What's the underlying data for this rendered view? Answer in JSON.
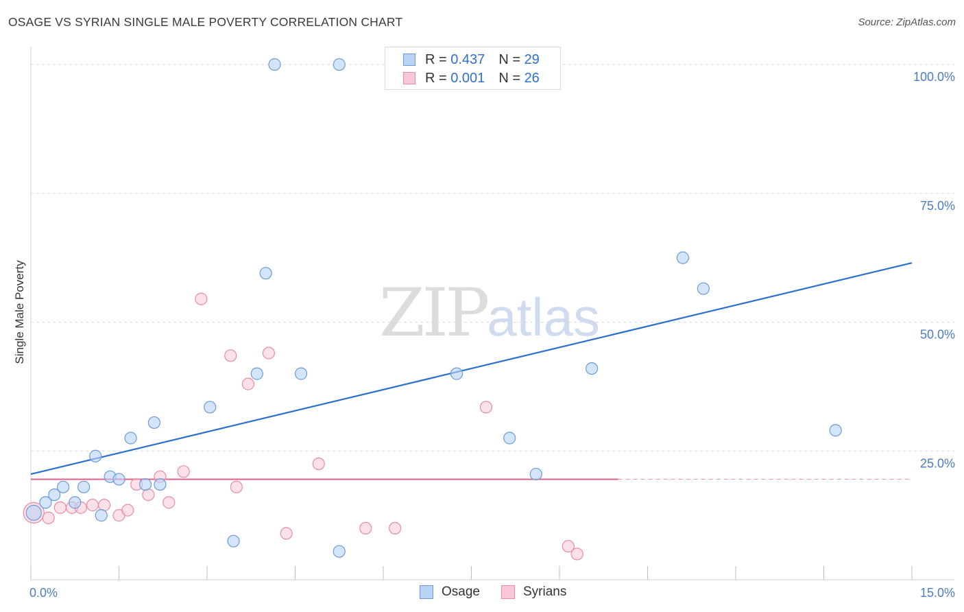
{
  "title": "OSAGE VS SYRIAN SINGLE MALE POVERTY CORRELATION CHART",
  "source": "Source: ZipAtlas.com",
  "watermark": {
    "zip": "ZIP",
    "atlas": "atlas"
  },
  "legend": {
    "rows": [
      {
        "r_label": "R = ",
        "r_value": "0.437",
        "n_label": "N = ",
        "n_value": "29"
      },
      {
        "r_label": "R = ",
        "r_value": "0.001",
        "n_label": "N = ",
        "n_value": "26"
      }
    ]
  },
  "bottom_legend": [
    "Osage",
    "Syrians"
  ],
  "colors": {
    "osage_fill": "#b9d3f5",
    "osage_stroke": "#6a9ad8",
    "osage_line": "#2a6fd0",
    "syrian_fill": "#f9c8d6",
    "syrian_stroke": "#e88aa6",
    "syrian_line": "#e06890",
    "grid": "#d9d9d9",
    "axis_text": "#4a7cc4"
  },
  "chart_data": {
    "type": "scatter",
    "title": "OSAGE VS SYRIAN SINGLE MALE POVERTY CORRELATION CHART",
    "xlabel": "",
    "ylabel": "Single Male Poverty",
    "xlim": [
      0,
      15
    ],
    "ylim": [
      0,
      102
    ],
    "x_tick_labels": [
      {
        "value": 0,
        "label": "0.0%"
      },
      {
        "value": 15,
        "label": "15.0%"
      }
    ],
    "y_tick_labels": [
      {
        "value": 25,
        "label": "25.0%"
      },
      {
        "value": 50,
        "label": "50.0%"
      },
      {
        "value": 75,
        "label": "75.0%"
      },
      {
        "value": 100,
        "label": "100.0%"
      }
    ],
    "x_minor_ticks": [
      0,
      1.5,
      3,
      4.5,
      6,
      7.5,
      9,
      10.5,
      12,
      13.5,
      15
    ],
    "series": [
      {
        "name": "Osage",
        "R": 0.437,
        "N": 29,
        "points": [
          [
            0.05,
            13.0
          ],
          [
            0.25,
            15.0
          ],
          [
            0.4,
            16.5
          ],
          [
            0.55,
            18.0
          ],
          [
            0.75,
            15.0
          ],
          [
            0.9,
            18.0
          ],
          [
            1.1,
            24.0
          ],
          [
            1.2,
            12.5
          ],
          [
            1.35,
            20.0
          ],
          [
            1.5,
            19.5
          ],
          [
            1.7,
            27.5
          ],
          [
            1.95,
            18.5
          ],
          [
            2.1,
            30.5
          ],
          [
            2.2,
            18.5
          ],
          [
            3.05,
            33.5
          ],
          [
            3.45,
            7.5
          ],
          [
            3.85,
            40.0
          ],
          [
            4.0,
            59.5
          ],
          [
            4.15,
            100.0
          ],
          [
            4.6,
            40.0
          ],
          [
            5.25,
            5.5
          ],
          [
            5.25,
            100.0
          ],
          [
            7.25,
            40.0
          ],
          [
            8.15,
            27.5
          ],
          [
            8.6,
            20.5
          ],
          [
            9.55,
            41.0
          ],
          [
            11.1,
            62.5
          ],
          [
            11.45,
            56.5
          ],
          [
            13.7,
            29.0
          ]
        ],
        "trend": {
          "x": [
            0,
            15
          ],
          "y": [
            20.5,
            61.5
          ]
        }
      },
      {
        "name": "Syrians",
        "R": 0.001,
        "N": 26,
        "points": [
          [
            0.05,
            13.0
          ],
          [
            0.3,
            12.0
          ],
          [
            0.5,
            14.0
          ],
          [
            0.7,
            14.0
          ],
          [
            0.85,
            14.0
          ],
          [
            1.05,
            14.5
          ],
          [
            1.25,
            14.5
          ],
          [
            1.5,
            12.5
          ],
          [
            1.65,
            13.5
          ],
          [
            1.8,
            18.5
          ],
          [
            2.0,
            16.5
          ],
          [
            2.2,
            20.0
          ],
          [
            2.35,
            15.0
          ],
          [
            2.6,
            21.0
          ],
          [
            2.9,
            54.5
          ],
          [
            3.4,
            43.5
          ],
          [
            3.5,
            18.0
          ],
          [
            3.7,
            38.0
          ],
          [
            4.05,
            44.0
          ],
          [
            4.35,
            9.0
          ],
          [
            4.9,
            22.5
          ],
          [
            5.7,
            10.0
          ],
          [
            6.2,
            10.0
          ],
          [
            7.75,
            33.5
          ],
          [
            9.15,
            6.5
          ],
          [
            9.3,
            5.0
          ]
        ],
        "trend": {
          "x": [
            0,
            10
          ],
          "y": [
            19.5,
            19.5
          ],
          "dashed_extension": {
            "x": [
              10,
              15
            ],
            "y": [
              19.5,
              19.5
            ]
          }
        }
      }
    ]
  }
}
